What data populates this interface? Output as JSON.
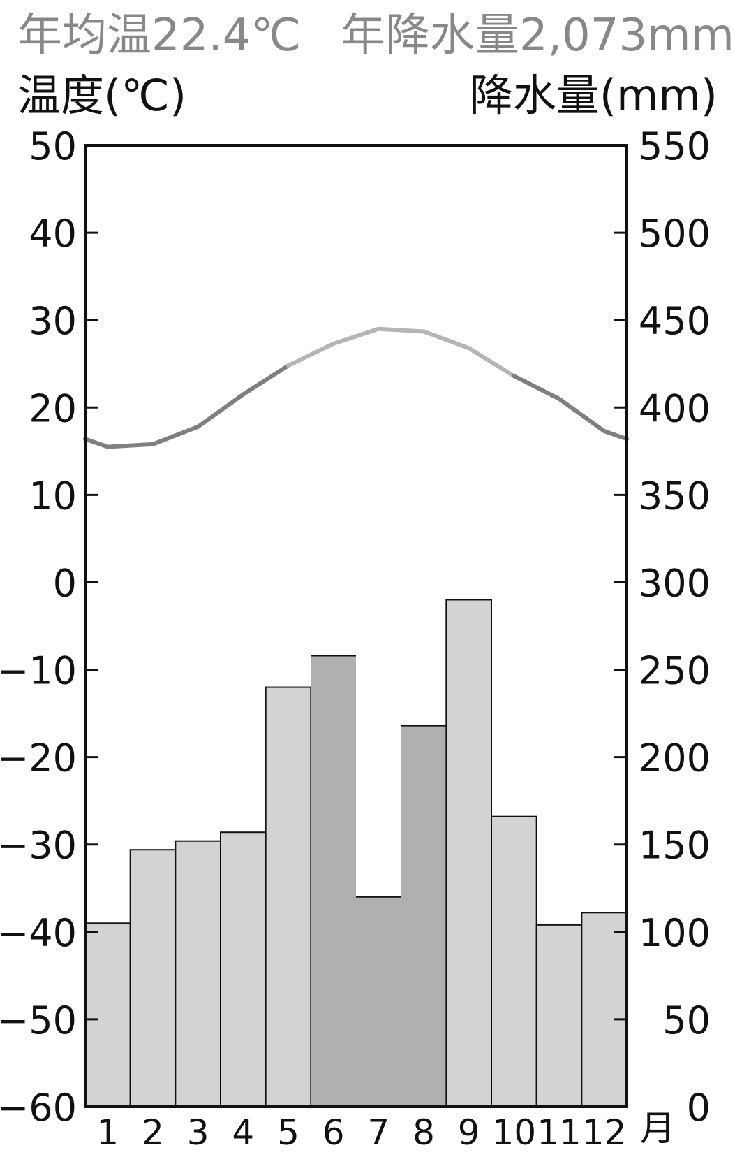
{
  "summary": {
    "annual_temperature": "年均温22.4℃",
    "annual_precipitation": "年降水量2,073mm"
  },
  "chart_data": {
    "type": "bar+line",
    "left_axis": {
      "label": "温度(℃)",
      "ylim": [
        -60,
        50
      ],
      "ticks": [
        "50",
        "40",
        "30",
        "20",
        "10",
        "0",
        "−10",
        "−20",
        "−30",
        "−40",
        "−50",
        "−60"
      ]
    },
    "right_axis": {
      "label": "降水量(mm)",
      "ylim": [
        0,
        550
      ],
      "ticks": [
        "550",
        "500",
        "450",
        "400",
        "350",
        "300",
        "250",
        "200",
        "150",
        "100",
        "50",
        "0"
      ]
    },
    "categories": [
      "1",
      "2",
      "3",
      "4",
      "5",
      "6",
      "7",
      "8",
      "9",
      "10",
      "11",
      "12"
    ],
    "x_unit": "月",
    "precipitation": [
      105,
      147,
      152,
      157,
      240,
      258,
      120,
      218,
      290,
      166,
      104,
      111
    ],
    "temperature": [
      15.5,
      15.8,
      17.8,
      21.5,
      24.8,
      27.3,
      29.0,
      28.7,
      26.8,
      23.6,
      21.0,
      17.3
    ],
    "grid": false,
    "colors": {
      "bar": "#d3d3d3",
      "bar_highlight": "#b0b0b0",
      "temperature_line": "#7f7f7f",
      "temperature_line_highlight": "#b5b5b5"
    }
  }
}
